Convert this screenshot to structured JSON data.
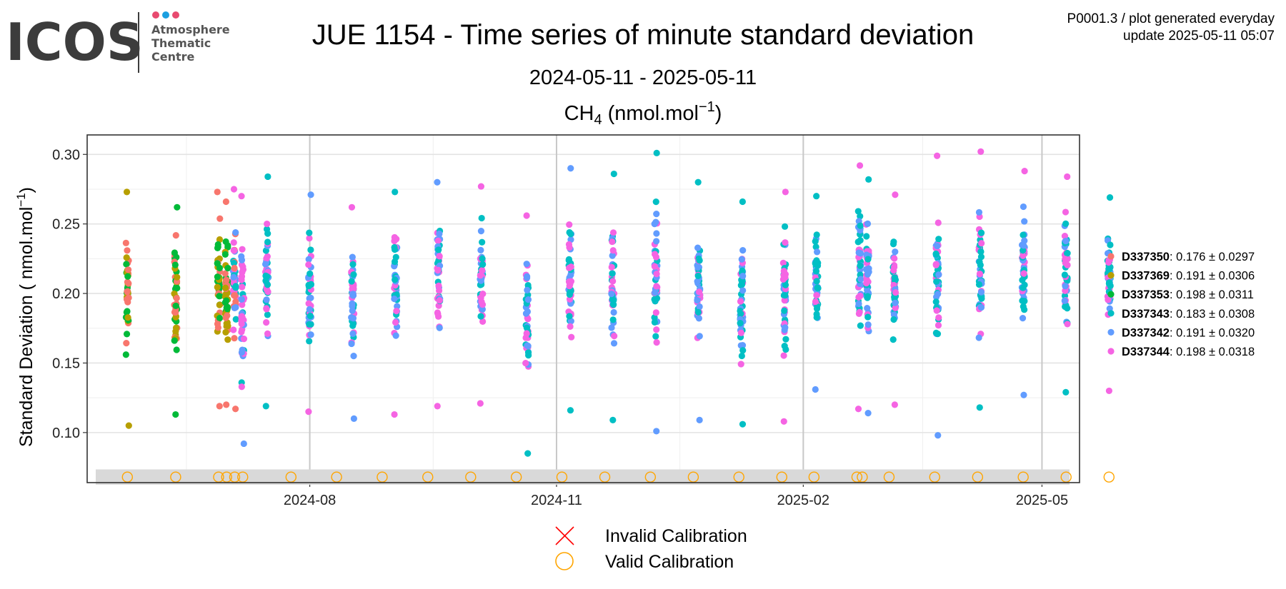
{
  "header": {
    "logo_text": "ICOS",
    "logo_sub": [
      "Atmosphere",
      "Thematic",
      "Centre"
    ],
    "logo_dot_colors": [
      "#e84a6f",
      "#1a9fe0",
      "#e84a6f"
    ],
    "title": "JUE 1154 - Time series of minute standard deviation",
    "subtitle": "2024-05-11 - 2025-05-11",
    "meta_line1": "P0001.3 / plot generated everyday",
    "meta_line2": "update  2025-05-11 05:07"
  },
  "chart_data": {
    "type": "scatter",
    "panel_title": {
      "species": "CH",
      "subscript": "4",
      "unit_pre": " (nmol.mol",
      "superscript": "−1",
      "unit_post": ")"
    },
    "ylabel": {
      "pre": "Standard Deviation ( nmol.mol",
      "superscript": "−1",
      "post": ")"
    },
    "xlim": [
      "2024-05-10",
      "2025-05-15"
    ],
    "ylim": [
      0.064,
      0.314
    ],
    "x_ticks": [
      "2024-08-01",
      "2024-11-01",
      "2025-02-01",
      "2025-05-01"
    ],
    "x_tick_labels": [
      "2024-08",
      "2024-11",
      "2025-02",
      "2025-05"
    ],
    "y_ticks": [
      0.1,
      0.15,
      0.2,
      0.25,
      0.3
    ],
    "y_tick_labels": [
      "0.10",
      "0.15",
      "0.20",
      "0.25",
      "0.30"
    ],
    "grid": true,
    "series": [
      {
        "name": "D337350",
        "stat": ": 0.176 ± 0.0297",
        "color": "#F8766D"
      },
      {
        "name": "D337369",
        "stat": ": 0.191 ± 0.0306",
        "color": "#B79F00"
      },
      {
        "name": "D337353",
        "stat": ": 0.198 ± 0.0311",
        "color": "#00BA38"
      },
      {
        "name": "D337343",
        "stat": ": 0.183 ± 0.0308",
        "color": "#00BFC4"
      },
      {
        "name": "D337342",
        "stat": ": 0.191 ± 0.0320",
        "color": "#619CFF"
      },
      {
        "name": "D337344",
        "stat": ": 0.198 ± 0.0318",
        "color": "#F564E3"
      }
    ],
    "clusters": [
      {
        "date": "2024-05-25",
        "min": 0.105,
        "max": 0.273,
        "series": [
          0,
          1,
          2
        ]
      },
      {
        "date": "2024-06-12",
        "min": 0.113,
        "max": 0.262,
        "series": [
          0,
          1,
          2
        ]
      },
      {
        "date": "2024-06-28",
        "min": 0.119,
        "max": 0.273,
        "series": [
          0,
          1,
          2
        ]
      },
      {
        "date": "2024-07-01",
        "min": 0.12,
        "max": 0.266,
        "series": [
          1,
          2,
          0
        ]
      },
      {
        "date": "2024-07-04",
        "min": 0.117,
        "max": 0.275,
        "series": [
          4,
          5,
          3,
          0
        ]
      },
      {
        "date": "2024-07-07",
        "min": 0.092,
        "max": 0.27,
        "series": [
          3,
          4,
          5
        ]
      },
      {
        "date": "2024-07-16",
        "min": 0.119,
        "max": 0.284,
        "series": [
          3,
          4,
          5
        ]
      },
      {
        "date": "2024-08-01",
        "min": 0.115,
        "max": 0.271,
        "series": [
          3,
          4,
          5
        ]
      },
      {
        "date": "2024-08-17",
        "min": 0.11,
        "max": 0.262,
        "series": [
          3,
          4,
          5
        ]
      },
      {
        "date": "2024-09-02",
        "min": 0.113,
        "max": 0.273,
        "series": [
          3,
          4,
          5
        ]
      },
      {
        "date": "2024-09-18",
        "min": 0.119,
        "max": 0.28,
        "series": [
          3,
          4,
          5
        ]
      },
      {
        "date": "2024-10-04",
        "min": 0.121,
        "max": 0.277,
        "series": [
          3,
          4,
          5
        ]
      },
      {
        "date": "2024-10-21",
        "min": 0.085,
        "max": 0.256,
        "series": [
          3,
          4,
          5
        ]
      },
      {
        "date": "2024-11-06",
        "min": 0.116,
        "max": 0.29,
        "series": [
          3,
          4,
          5
        ]
      },
      {
        "date": "2024-11-22",
        "min": 0.109,
        "max": 0.286,
        "series": [
          3,
          4,
          5
        ]
      },
      {
        "date": "2024-12-08",
        "min": 0.101,
        "max": 0.301,
        "series": [
          3,
          4,
          5
        ]
      },
      {
        "date": "2024-12-24",
        "min": 0.109,
        "max": 0.28,
        "series": [
          3,
          4,
          5
        ]
      },
      {
        "date": "2025-01-09",
        "min": 0.106,
        "max": 0.266,
        "series": [
          3,
          4,
          5
        ]
      },
      {
        "date": "2025-01-25",
        "min": 0.108,
        "max": 0.273,
        "series": [
          3,
          4,
          5
        ]
      },
      {
        "date": "2025-02-06",
        "min": 0.131,
        "max": 0.27,
        "series": [
          3,
          4,
          5
        ]
      },
      {
        "date": "2025-02-22",
        "min": 0.117,
        "max": 0.292,
        "series": [
          3,
          4,
          5
        ]
      },
      {
        "date": "2025-02-25",
        "min": 0.114,
        "max": 0.282,
        "series": [
          3,
          4,
          5
        ]
      },
      {
        "date": "2025-03-07",
        "min": 0.12,
        "max": 0.271,
        "series": [
          3,
          4,
          5
        ]
      },
      {
        "date": "2025-03-23",
        "min": 0.098,
        "max": 0.299,
        "series": [
          3,
          4,
          5
        ]
      },
      {
        "date": "2025-04-08",
        "min": 0.118,
        "max": 0.302,
        "series": [
          3,
          4,
          5
        ]
      },
      {
        "date": "2025-04-24",
        "min": 0.127,
        "max": 0.288,
        "series": [
          3,
          4,
          5
        ]
      },
      {
        "date": "2025-05-10",
        "min": 0.129,
        "max": 0.284,
        "series": [
          3,
          4,
          5
        ]
      },
      {
        "date": "2025-05-26",
        "min": 0.13,
        "max": 0.269,
        "series": [
          3,
          4,
          5
        ]
      }
    ],
    "calibration": {
      "band_y": [
        0.0625,
        0.0735
      ],
      "marker_y": 0.068,
      "marker_color": "#FFA500",
      "valid_dates": [
        "2024-05-25",
        "2024-06-12",
        "2024-06-28",
        "2024-07-01",
        "2024-07-04",
        "2024-07-07",
        "2024-07-25",
        "2024-08-11",
        "2024-08-28",
        "2024-09-14",
        "2024-09-30",
        "2024-10-17",
        "2024-11-03",
        "2024-11-19",
        "2024-12-06",
        "2024-12-22",
        "2025-01-08",
        "2025-01-24",
        "2025-02-05",
        "2025-02-21",
        "2025-02-23",
        "2025-03-05",
        "2025-03-22",
        "2025-04-07",
        "2025-04-24",
        "2025-05-10",
        "2025-05-26"
      ]
    },
    "bottom_legend": {
      "invalid_label": "Invalid Calibration",
      "valid_label": "Valid Calibration",
      "invalid_color": "#FF0000",
      "valid_color": "#FFA500"
    }
  }
}
